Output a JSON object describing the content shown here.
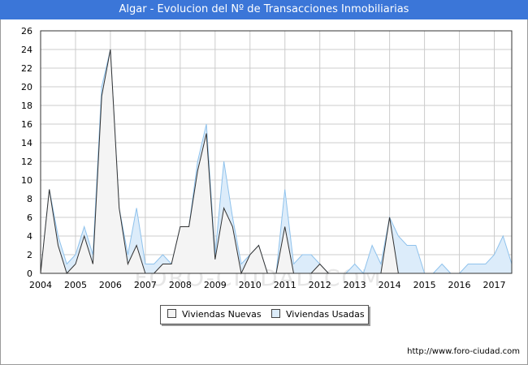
{
  "title": "Algar - Evolucion del Nº de Transacciones Inmobiliarias",
  "footer": "http://www.foro-ciudad.com",
  "watermark": "FORO-CIUDAD.COM",
  "colors": {
    "title_bg": "#3b76d8",
    "nuevas_fill": "#f4f4f4",
    "nuevas_line": "#333333",
    "usadas_fill": "#dcecfa",
    "usadas_line": "#8fc2ec",
    "grid": "#cccccc"
  },
  "chart_data": {
    "type": "area",
    "title": "Algar - Evolucion del Nº de Transacciones Inmobiliarias",
    "xlabel": "",
    "ylabel": "",
    "xlim": [
      2004,
      2017.5
    ],
    "ylim": [
      0,
      26
    ],
    "yticks": [
      0,
      2,
      4,
      6,
      8,
      10,
      12,
      14,
      16,
      18,
      20,
      22,
      24,
      26
    ],
    "xticks": [
      "2004",
      "2005",
      "2006",
      "2007",
      "2008",
      "2009",
      "2010",
      "2011",
      "2012",
      "2013",
      "2014",
      "2015",
      "2016",
      "2017"
    ],
    "grid": true,
    "legend_position": "bottom",
    "x": [
      2004.0,
      2004.25,
      2004.5,
      2004.75,
      2005.0,
      2005.25,
      2005.5,
      2005.75,
      2006.0,
      2006.25,
      2006.5,
      2006.75,
      2007.0,
      2007.25,
      2007.5,
      2007.75,
      2008.0,
      2008.25,
      2008.5,
      2008.75,
      2009.0,
      2009.25,
      2009.5,
      2009.75,
      2010.0,
      2010.25,
      2010.5,
      2010.75,
      2011.0,
      2011.25,
      2011.5,
      2011.75,
      2012.0,
      2012.25,
      2012.5,
      2012.75,
      2013.0,
      2013.25,
      2013.5,
      2013.75,
      2014.0,
      2014.25,
      2014.5,
      2014.75,
      2015.0,
      2015.25,
      2015.5,
      2015.75,
      2016.0,
      2016.25,
      2016.5,
      2016.75,
      2017.0,
      2017.25,
      2017.5
    ],
    "series": [
      {
        "name": "Viviendas Nuevas",
        "values": [
          0,
          9,
          3,
          0,
          1,
          4,
          1,
          19,
          24,
          7,
          1,
          3,
          0,
          0,
          1,
          1,
          5,
          5,
          11,
          15,
          1.5,
          7,
          5,
          0,
          2,
          3,
          0,
          0,
          5,
          0,
          0,
          0,
          1,
          0,
          0,
          0,
          0,
          0,
          0,
          0,
          6,
          0,
          0,
          0,
          0,
          0,
          0,
          0,
          0,
          0,
          0,
          0,
          0,
          0,
          0
        ]
      },
      {
        "name": "Viviendas Usadas",
        "values": [
          0,
          9,
          4,
          1,
          2,
          5,
          2,
          20,
          24,
          7,
          2,
          7,
          1,
          1,
          2,
          1,
          5,
          5,
          12,
          16,
          2,
          12,
          6,
          1,
          2,
          3,
          0,
          0,
          9,
          1,
          2,
          2,
          1,
          0,
          0,
          0,
          1,
          0,
          3,
          1,
          6,
          4,
          3,
          3,
          0,
          0,
          1,
          0,
          0,
          1,
          1,
          1,
          2,
          4,
          1
        ]
      }
    ]
  }
}
